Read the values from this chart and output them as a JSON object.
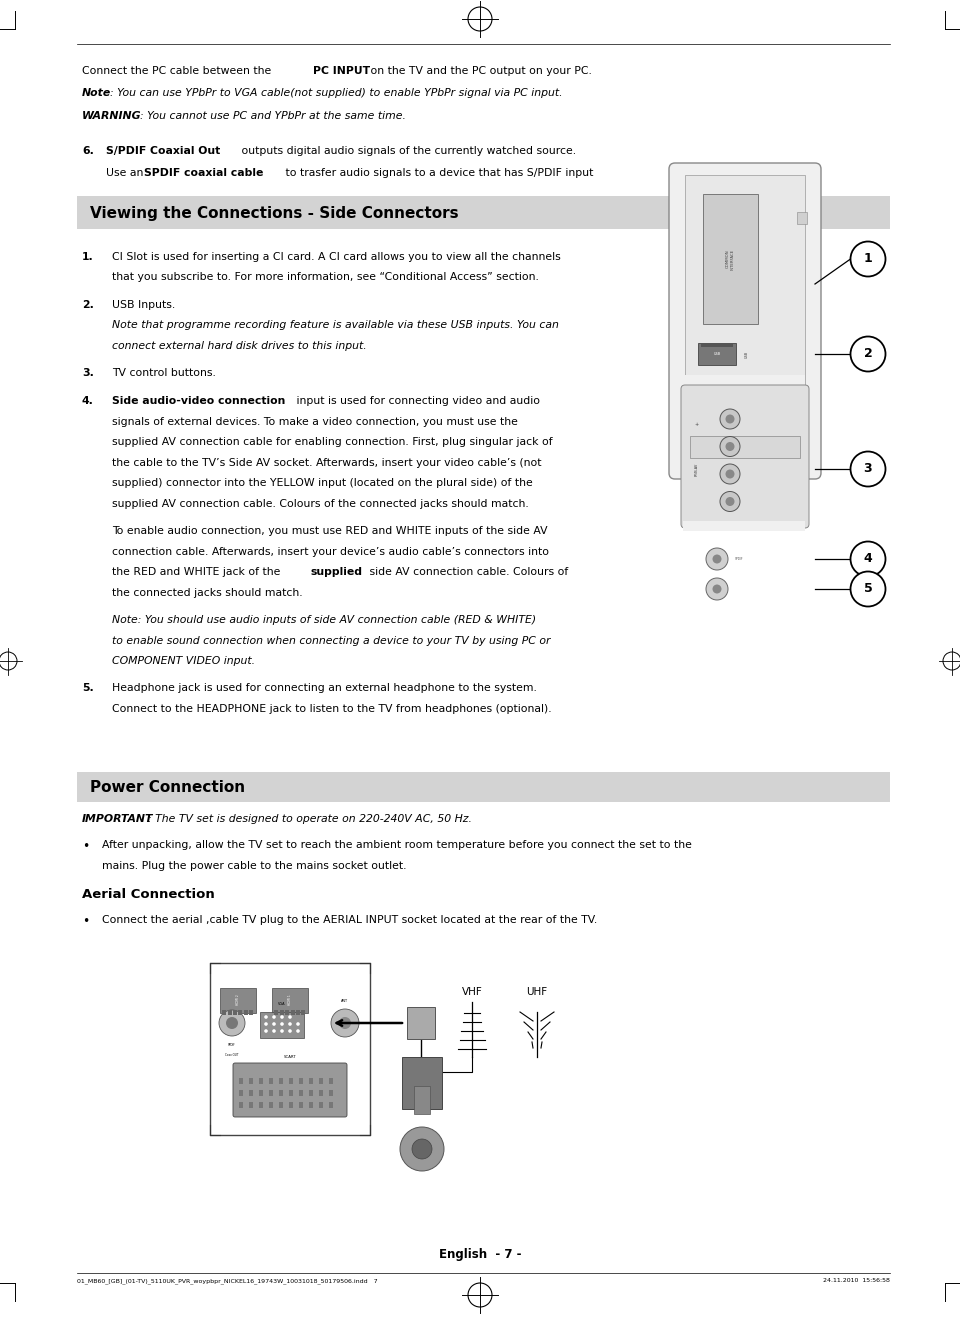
{
  "page_bg": "#ffffff",
  "page_width": 9.6,
  "page_height": 13.21,
  "lm": 0.82,
  "rm": 8.85,
  "fs": 7.8,
  "fs_header": 11.0,
  "section1_title": "Viewing the Connections - Side Connectors",
  "section2_title": "Power Connection",
  "footer_text": "01_MB60_[GB]_(01-TV)_5110UK_PVR_woypbpr_NICKEL16_19743W_10031018_50179506.indd   7",
  "footer_right": "24.11.2010  15:56:58",
  "footer_page": "English  - 7 -",
  "vhf_label": "VHF",
  "uhf_label": "UHF"
}
